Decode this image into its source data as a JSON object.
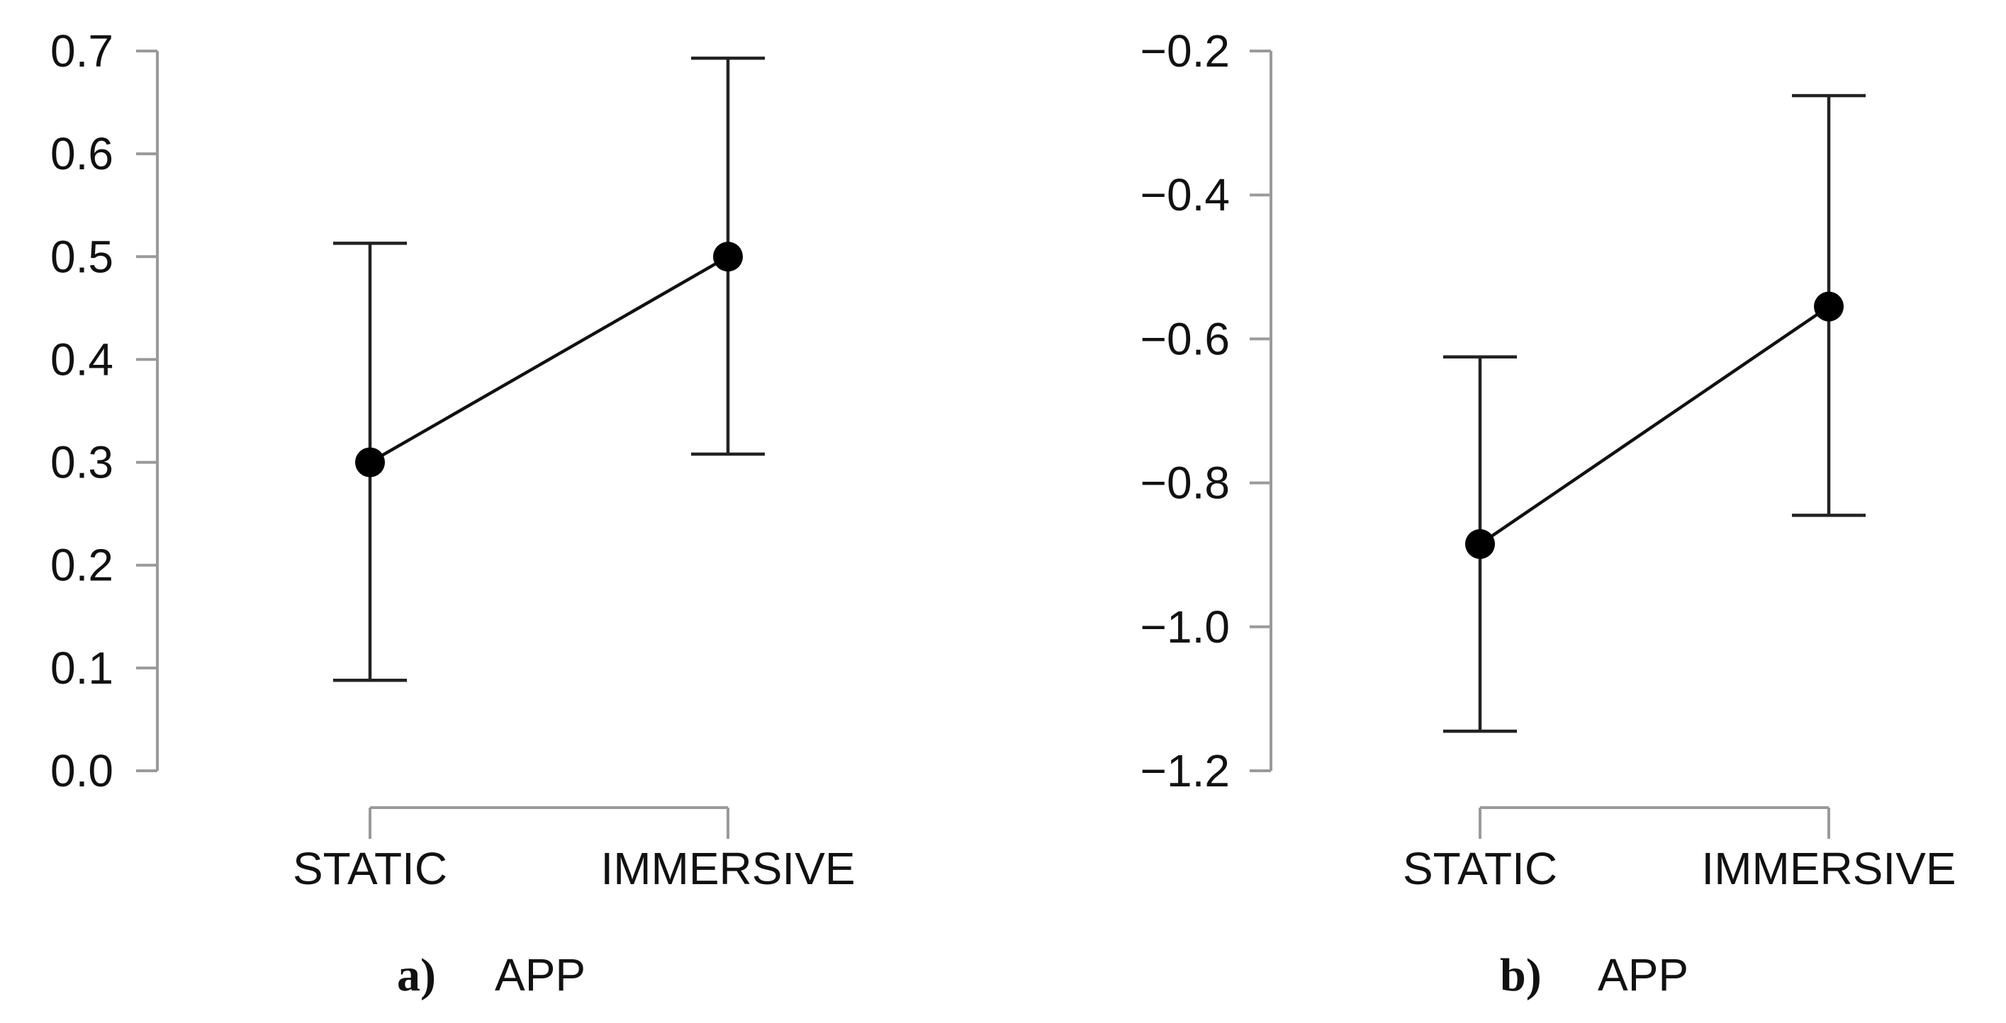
{
  "chart_data": [
    {
      "type": "line",
      "panel_label": "a)",
      "xlabel": "APP",
      "categories": [
        "STATIC",
        "IMMERSIVE"
      ],
      "values": [
        0.3,
        0.5
      ],
      "error_low": [
        0.088,
        0.308
      ],
      "error_high": [
        0.513,
        0.693
      ],
      "ylim": [
        0.0,
        0.7
      ],
      "yticks": [
        0.0,
        0.1,
        0.2,
        0.3,
        0.4,
        0.5,
        0.6,
        0.7
      ],
      "ytick_labels": [
        "0.0",
        "0.1",
        "0.2",
        "0.3",
        "0.4",
        "0.5",
        "0.6",
        "0.7"
      ],
      "grid": false,
      "colors": {
        "line": "#111111",
        "axis": "#9a9a9a"
      }
    },
    {
      "type": "line",
      "panel_label": "b)",
      "xlabel": "APP",
      "categories": [
        "STATIC",
        "IMMERSIVE"
      ],
      "values": [
        -0.885,
        -0.555
      ],
      "error_low": [
        -1.145,
        -0.845
      ],
      "error_high": [
        -0.625,
        -0.262
      ],
      "ylim": [
        -1.2,
        -0.2
      ],
      "yticks": [
        -1.2,
        -1.0,
        -0.8,
        -0.6,
        -0.4,
        -0.2
      ],
      "ytick_labels": [
        "−1.2",
        "−1.0",
        "−0.8",
        "−0.6",
        "−0.4",
        "−0.2"
      ],
      "grid": false,
      "colors": {
        "line": "#111111",
        "axis": "#9a9a9a"
      }
    }
  ]
}
